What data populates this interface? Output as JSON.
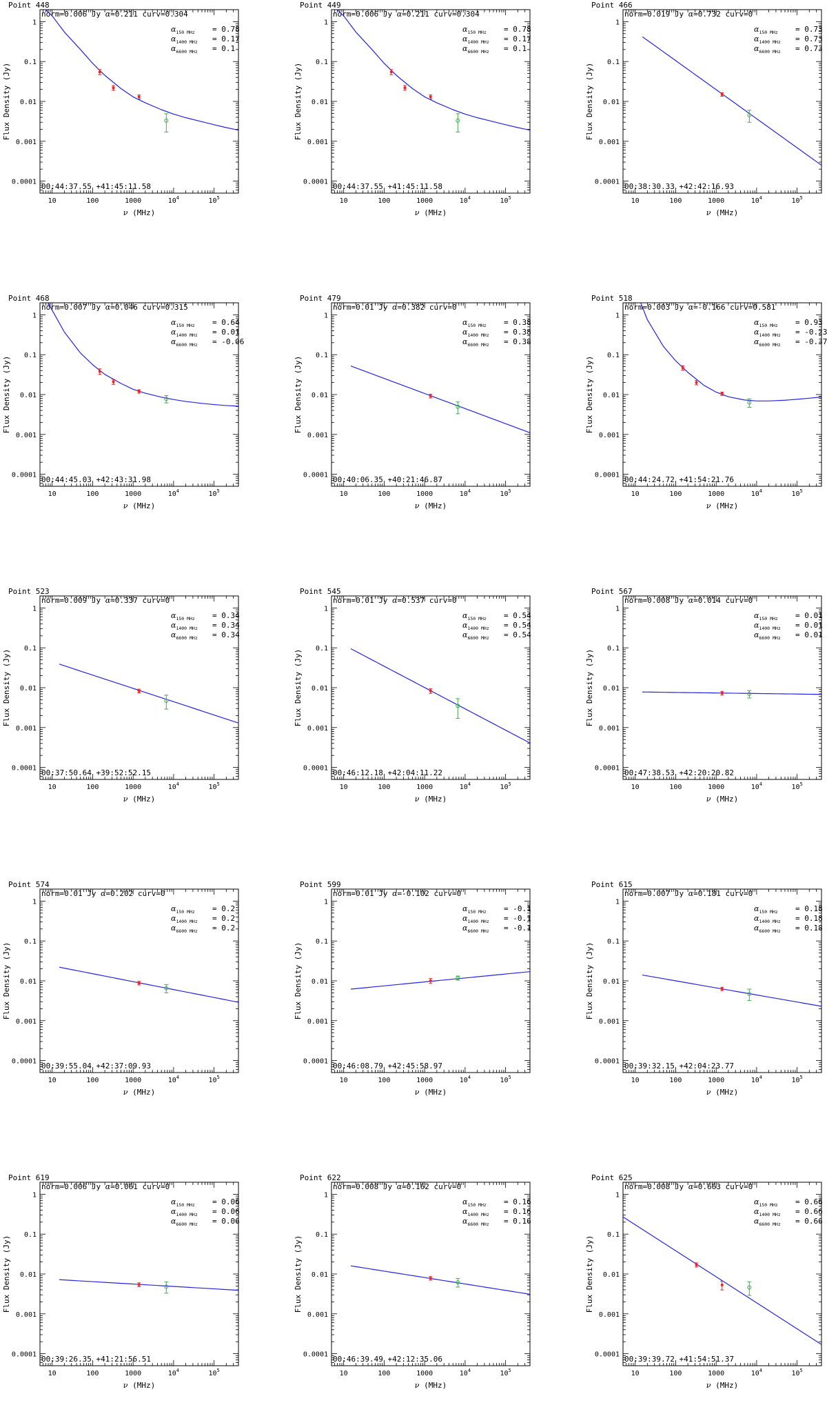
{
  "labels": {
    "xlabel_prefix": "ν",
    "xlabel_suffix": " (MHz)",
    "ylabel": "Flux Density (Jy)",
    "alpha_symbol": "α",
    "alpha_rows": [
      "150 MHz",
      "1400 MHz",
      "6600 MHz"
    ]
  },
  "colors": {
    "model": "#2222ee",
    "points": "#ee2222",
    "vla": "#44aa55",
    "axes": "#000000"
  },
  "axes": {
    "scale": "log-log",
    "xlim": [
      5,
      400000
    ],
    "ylim": [
      5e-05,
      2
    ],
    "x_ticks": [
      {
        "value": 10,
        "label": "10",
        "exp": ""
      },
      {
        "value": 100,
        "label": "100",
        "exp": ""
      },
      {
        "value": 1000,
        "label": "1000",
        "exp": ""
      },
      {
        "value": 10000,
        "label": "10",
        "exp": "4"
      },
      {
        "value": 100000,
        "label": "10",
        "exp": "5"
      }
    ],
    "y_ticks": [
      {
        "value": 1,
        "label": "1"
      },
      {
        "value": 0.1,
        "label": "0.1"
      },
      {
        "value": 0.01,
        "label": "0.01"
      },
      {
        "value": 0.001,
        "label": "0.001"
      },
      {
        "value": 0.0001,
        "label": "0.0001"
      }
    ]
  },
  "chart_data": [
    {
      "type": "scatter",
      "title": "Point 448",
      "norm": "0.006",
      "alpha": "0.211",
      "curv": "0.304",
      "alpha_values": [
        "0.78",
        "0.17",
        "0.1"
      ],
      "coords": "00:44:37.55 +41:45:11.58",
      "points": [
        {
          "x": 150,
          "y": 0.055,
          "err": 0.008
        },
        {
          "x": 325,
          "y": 0.022,
          "err": 0.003
        },
        {
          "x": 1400,
          "y": 0.013,
          "err": 0.0015
        }
      ],
      "vla": [
        {
          "x": 6600,
          "y": 0.0033,
          "err": 0.0016
        }
      ],
      "model": {
        "x": [
          6,
          10,
          20,
          50,
          100,
          200,
          500,
          1000,
          2000,
          5000,
          10000,
          20000,
          50000,
          100000,
          200000,
          400000
        ],
        "y": [
          2.3,
          1.4,
          0.55,
          0.2,
          0.09,
          0.045,
          0.021,
          0.013,
          0.0092,
          0.0062,
          0.0048,
          0.0039,
          0.0031,
          0.0026,
          0.0022,
          0.0019
        ]
      }
    },
    {
      "type": "scatter",
      "title": "Point 449",
      "norm": "0.006",
      "alpha": "0.211",
      "curv": "0.304",
      "alpha_values": [
        "0.78",
        "0.17",
        "0.1"
      ],
      "coords": "00:44:37.55 +41:45:11.58",
      "points": [
        {
          "x": 150,
          "y": 0.055,
          "err": 0.008
        },
        {
          "x": 325,
          "y": 0.022,
          "err": 0.003
        },
        {
          "x": 1400,
          "y": 0.013,
          "err": 0.0015
        }
      ],
      "vla": [
        {
          "x": 6600,
          "y": 0.0033,
          "err": 0.0016
        }
      ],
      "model": {
        "x": [
          6,
          10,
          20,
          50,
          100,
          200,
          500,
          1000,
          2000,
          5000,
          10000,
          20000,
          50000,
          100000,
          200000,
          400000
        ],
        "y": [
          2.3,
          1.4,
          0.55,
          0.2,
          0.09,
          0.045,
          0.021,
          0.013,
          0.0092,
          0.0062,
          0.0048,
          0.0039,
          0.0031,
          0.0026,
          0.0022,
          0.0019
        ]
      }
    },
    {
      "type": "scatter",
      "title": "Point 466",
      "norm": "0.019",
      "alpha": "0.732",
      "curv": "0",
      "alpha_values": [
        "0.73",
        "0.73",
        "0.73"
      ],
      "coords": "00:38:30.33 +42:42:16.93",
      "points": [
        {
          "x": 1400,
          "y": 0.015,
          "err": 0.0015
        }
      ],
      "vla": [
        {
          "x": 6600,
          "y": 0.0045,
          "err": 0.0015
        }
      ],
      "model": {
        "x": [
          15,
          400000
        ],
        "y": [
          0.42,
          0.00025
        ]
      }
    },
    {
      "type": "scatter",
      "title": "Point 468",
      "norm": "0.007",
      "alpha": "0.046",
      "curv": "0.315",
      "alpha_values": [
        "0.64",
        "0.01",
        "-0.06"
      ],
      "coords": "00:44:45.03 +42:43:31.98",
      "points": [
        {
          "x": 150,
          "y": 0.038,
          "err": 0.006
        },
        {
          "x": 325,
          "y": 0.021,
          "err": 0.003
        },
        {
          "x": 1400,
          "y": 0.012,
          "err": 0.0012
        }
      ],
      "vla": [
        {
          "x": 6600,
          "y": 0.0078,
          "err": 0.0016
        }
      ],
      "model": {
        "x": [
          6,
          10,
          20,
          50,
          100,
          200,
          500,
          1000,
          2000,
          5000,
          10000,
          20000,
          50000,
          100000,
          200000,
          400000
        ],
        "y": [
          3.5,
          1.3,
          0.37,
          0.11,
          0.056,
          0.032,
          0.019,
          0.0135,
          0.0108,
          0.0086,
          0.0075,
          0.0067,
          0.006,
          0.0056,
          0.0053,
          0.0051
        ]
      }
    },
    {
      "type": "scatter",
      "title": "Point 479",
      "norm": "0.01",
      "alpha": "0.382",
      "curv": "0",
      "alpha_values": [
        "0.38",
        "0.38",
        "0.38"
      ],
      "coords": "00:40:06.35 +40:21:46.87",
      "points": [
        {
          "x": 1400,
          "y": 0.0092,
          "err": 0.001
        }
      ],
      "vla": [
        {
          "x": 6600,
          "y": 0.0049,
          "err": 0.0016
        }
      ],
      "model": {
        "x": [
          15,
          400000
        ],
        "y": [
          0.052,
          0.0011
        ]
      }
    },
    {
      "type": "scatter",
      "title": "Point 518",
      "norm": "0.003",
      "alpha": "-0.166",
      "curv": "0.581",
      "alpha_values": [
        "0.93",
        "-0.23",
        "-0.37"
      ],
      "coords": "00:44:24.72 +41:54:21.76",
      "points": [
        {
          "x": 150,
          "y": 0.047,
          "err": 0.006
        },
        {
          "x": 325,
          "y": 0.02,
          "err": 0.0025
        },
        {
          "x": 1400,
          "y": 0.0105,
          "err": 0.001
        }
      ],
      "vla": [
        {
          "x": 6600,
          "y": 0.0063,
          "err": 0.0015
        }
      ],
      "model": {
        "x": [
          6,
          10,
          20,
          50,
          100,
          200,
          500,
          1000,
          2000,
          5000,
          10000,
          20000,
          50000,
          100000,
          200000,
          400000
        ],
        "y": [
          30,
          4.5,
          0.75,
          0.16,
          0.07,
          0.036,
          0.017,
          0.0115,
          0.0088,
          0.0073,
          0.0069,
          0.0069,
          0.0072,
          0.0076,
          0.0081,
          0.0087
        ]
      }
    },
    {
      "type": "scatter",
      "title": "Point 523",
      "norm": "0.009",
      "alpha": "0.337",
      "curv": "0",
      "alpha_values": [
        "0.34",
        "0.34",
        "0.34"
      ],
      "coords": "00:37:50.64 +39:52:52.15",
      "points": [
        {
          "x": 1400,
          "y": 0.0083,
          "err": 0.0009
        }
      ],
      "vla": [
        {
          "x": 6600,
          "y": 0.0047,
          "err": 0.0018
        }
      ],
      "model": {
        "x": [
          15,
          400000
        ],
        "y": [
          0.039,
          0.0013
        ]
      }
    },
    {
      "type": "scatter",
      "title": "Point 545",
      "norm": "0.01",
      "alpha": "0.537",
      "curv": "0",
      "alpha_values": [
        "0.54",
        "0.54",
        "0.54"
      ],
      "coords": "00:46:12.18 +42:04:11.22",
      "points": [
        {
          "x": 1400,
          "y": 0.0083,
          "err": 0.0011
        }
      ],
      "vla": [
        {
          "x": 6600,
          "y": 0.0035,
          "err": 0.0018
        }
      ],
      "model": {
        "x": [
          15,
          400000
        ],
        "y": [
          0.095,
          0.00041
        ]
      }
    },
    {
      "type": "scatter",
      "title": "Point 567",
      "norm": "0.008",
      "alpha": "0.014",
      "curv": "0",
      "alpha_values": [
        "0.01",
        "0.01",
        "0.01"
      ],
      "coords": "00:47:38.53 +42:20:20.82",
      "points": [
        {
          "x": 1400,
          "y": 0.0073,
          "err": 0.0008
        }
      ],
      "vla": [
        {
          "x": 6600,
          "y": 0.007,
          "err": 0.0015
        }
      ],
      "model": {
        "x": [
          15,
          400000
        ],
        "y": [
          0.0078,
          0.0068
        ]
      }
    },
    {
      "type": "scatter",
      "title": "Point 574",
      "norm": "0.01",
      "alpha": "0.202",
      "curv": "0",
      "alpha_values": [
        "0.2",
        "0.2",
        "0.2"
      ],
      "coords": "00:39:55.04 +42:37:09.93",
      "points": [
        {
          "x": 1400,
          "y": 0.0088,
          "err": 0.0009
        }
      ],
      "vla": [
        {
          "x": 6600,
          "y": 0.0065,
          "err": 0.0015
        }
      ],
      "model": {
        "x": [
          15,
          400000
        ],
        "y": [
          0.022,
          0.0029
        ]
      }
    },
    {
      "type": "scatter",
      "title": "Point 599",
      "norm": "0.01",
      "alpha": "-0.102",
      "curv": "0",
      "alpha_values": [
        "-0.1",
        "-0.1",
        "-0.1"
      ],
      "coords": "00:46:08.79 +42:45:58.97",
      "points": [
        {
          "x": 1400,
          "y": 0.01,
          "err": 0.0014
        }
      ],
      "vla": [
        {
          "x": 6600,
          "y": 0.0118,
          "err": 0.0014
        }
      ],
      "model": {
        "x": [
          15,
          400000
        ],
        "y": [
          0.0062,
          0.017
        ]
      }
    },
    {
      "type": "scatter",
      "title": "Point 615",
      "norm": "0.007",
      "alpha": "0.181",
      "curv": "0",
      "alpha_values": [
        "0.18",
        "0.18",
        "0.18"
      ],
      "coords": "00:39:32.15 +42:04:23.77",
      "points": [
        {
          "x": 1400,
          "y": 0.0063,
          "err": 0.0006
        }
      ],
      "vla": [
        {
          "x": 6600,
          "y": 0.0047,
          "err": 0.0015
        }
      ],
      "model": {
        "x": [
          15,
          400000
        ],
        "y": [
          0.014,
          0.0023
        ]
      }
    },
    {
      "type": "scatter",
      "title": "Point 619",
      "norm": "0.006",
      "alpha": "0.061",
      "curv": "0",
      "alpha_values": [
        "0.06",
        "0.06",
        "0.06"
      ],
      "coords": "00:39:26.35 +41:21:56.51",
      "points": [
        {
          "x": 1400,
          "y": 0.0054,
          "err": 0.0006
        }
      ],
      "vla": [
        {
          "x": 6600,
          "y": 0.0048,
          "err": 0.0015
        }
      ],
      "model": {
        "x": [
          15,
          400000
        ],
        "y": [
          0.0072,
          0.0039
        ]
      }
    },
    {
      "type": "scatter",
      "title": "Point 622",
      "norm": "0.008",
      "alpha": "0.162",
      "curv": "0",
      "alpha_values": [
        "0.16",
        "0.16",
        "0.16"
      ],
      "coords": "00:46:39.49 +42:12:35.06",
      "points": [
        {
          "x": 1400,
          "y": 0.0078,
          "err": 0.0008
        }
      ],
      "vla": [
        {
          "x": 6600,
          "y": 0.0062,
          "err": 0.0015
        }
      ],
      "model": {
        "x": [
          15,
          400000
        ],
        "y": [
          0.016,
          0.0031
        ]
      }
    },
    {
      "type": "scatter",
      "title": "Point 625",
      "norm": "0.008",
      "alpha": "0.663",
      "curv": "0",
      "alpha_values": [
        "0.66",
        "0.66",
        "0.66"
      ],
      "coords": "00:39:39.72 +41:54:51.37",
      "points": [
        {
          "x": 325,
          "y": 0.017,
          "err": 0.002
        },
        {
          "x": 1400,
          "y": 0.0053,
          "err": 0.0013
        }
      ],
      "vla": [
        {
          "x": 6600,
          "y": 0.0046,
          "err": 0.0017
        }
      ],
      "model": {
        "x": [
          5,
          400000
        ],
        "y": [
          0.27,
          0.00017
        ]
      }
    }
  ]
}
